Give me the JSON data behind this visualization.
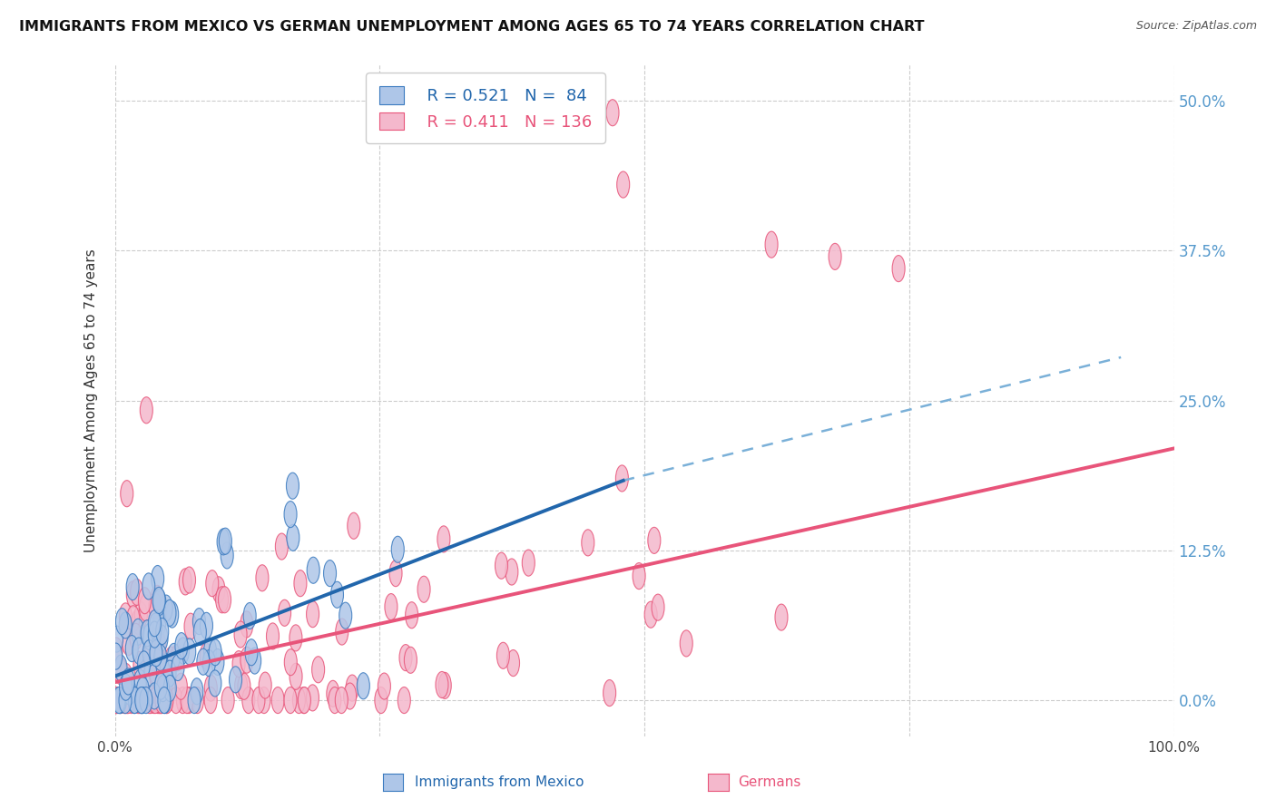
{
  "title": "IMMIGRANTS FROM MEXICO VS GERMAN UNEMPLOYMENT AMONG AGES 65 TO 74 YEARS CORRELATION CHART",
  "source": "Source: ZipAtlas.com",
  "ylabel_label": "Unemployment Among Ages 65 to 74 years",
  "xlim": [
    0,
    1.0
  ],
  "ylim": [
    -0.03,
    0.53
  ],
  "yticks": [
    0.0,
    0.125,
    0.25,
    0.375,
    0.5
  ],
  "xticks": [
    0.0,
    0.25,
    0.5,
    0.75,
    1.0
  ],
  "legend_r1": "R = 0.521",
  "legend_n1": "N =  84",
  "legend_r2": "R = 0.411",
  "legend_n2": "N = 136",
  "color_blue_fill": "#aec6e8",
  "color_blue_edge": "#3a7abf",
  "color_pink_fill": "#f4b8cc",
  "color_pink_edge": "#e8557a",
  "color_blue_line": "#2166ac",
  "color_pink_line": "#e8547a",
  "color_blue_dash": "#7ab0d8",
  "background": "#ffffff",
  "grid_color": "#cccccc",
  "right_tick_color": "#5599cc",
  "title_color": "#111111",
  "source_color": "#555555"
}
